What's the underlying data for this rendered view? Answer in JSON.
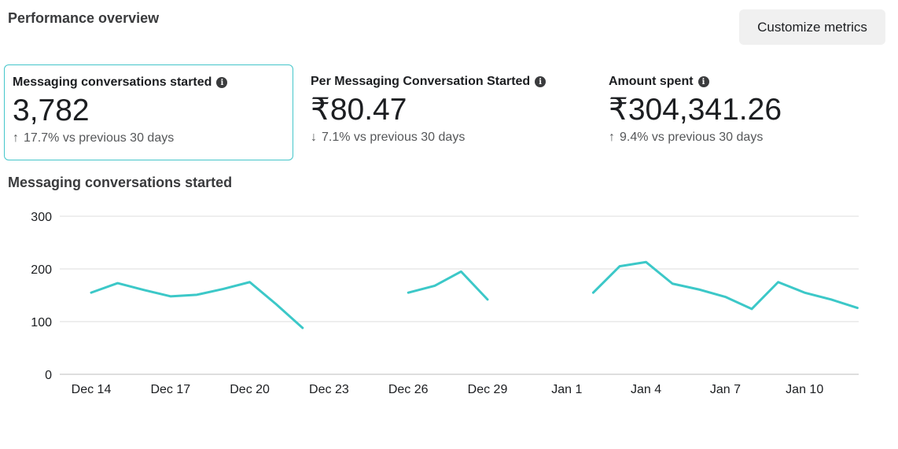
{
  "header": {
    "title": "Performance overview",
    "customize_label": "Customize metrics"
  },
  "metrics": [
    {
      "title": "Messaging conversations started",
      "value": "3,782",
      "change_direction": "up",
      "change_arrow": "↑",
      "change_text": "17.7% vs previous 30 days",
      "selected": true
    },
    {
      "title": "Per Messaging Conversation Started",
      "value": "₹80.47",
      "change_direction": "down",
      "change_arrow": "↓",
      "change_text": "7.1% vs previous 30 days",
      "selected": false
    },
    {
      "title": "Amount spent",
      "value": "₹304,341.26",
      "change_direction": "up",
      "change_arrow": "↑",
      "change_text": "9.4% vs previous 30 days",
      "selected": false
    }
  ],
  "info_icon_glyph": "i",
  "chart_title": "Messaging conversations started",
  "colors": {
    "accent": "#3cc8c8",
    "grid": "#dddddd"
  },
  "chart_data": {
    "type": "line",
    "ylim": [
      0,
      300
    ],
    "y_ticks": [
      0,
      100,
      200,
      300
    ],
    "x_tick_labels": [
      "Dec 14",
      "Dec 17",
      "Dec 20",
      "Dec 23",
      "Dec 26",
      "Dec 29",
      "Jan 1",
      "Jan 4",
      "Jan 7",
      "Jan 10"
    ],
    "x_tick_indices": [
      0,
      3,
      6,
      9,
      12,
      15,
      18,
      21,
      24,
      27
    ],
    "x_categories": [
      "Dec 14",
      "Dec 15",
      "Dec 16",
      "Dec 17",
      "Dec 18",
      "Dec 19",
      "Dec 20",
      "Dec 21",
      "Dec 22",
      "Dec 23",
      "Dec 24",
      "Dec 25",
      "Dec 26",
      "Dec 27",
      "Dec 28",
      "Dec 29",
      "Dec 30",
      "Dec 31",
      "Jan 1",
      "Jan 2",
      "Jan 3",
      "Jan 4",
      "Jan 5",
      "Jan 6",
      "Jan 7",
      "Jan 8",
      "Jan 9",
      "Jan 10",
      "Jan 11",
      "Jan 12"
    ],
    "series": [
      {
        "values": [
          155,
          173,
          160,
          148,
          151,
          162,
          175,
          133,
          88,
          null,
          null,
          null,
          155,
          168,
          195,
          142,
          null,
          null,
          null,
          155,
          205,
          213,
          172,
          161,
          147,
          124,
          175,
          155,
          142,
          126
        ]
      }
    ]
  }
}
